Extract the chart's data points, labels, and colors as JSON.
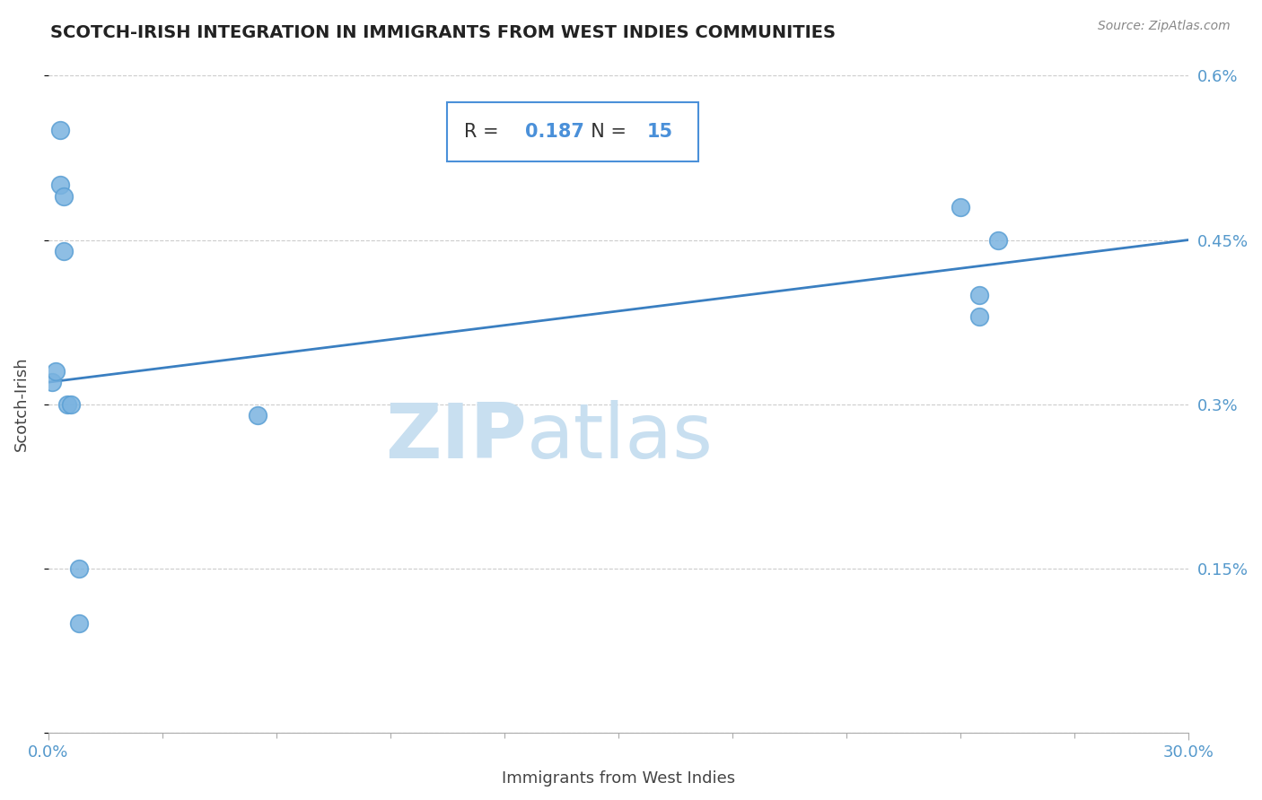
{
  "title": "SCOTCH-IRISH INTEGRATION IN IMMIGRANTS FROM WEST INDIES COMMUNITIES",
  "source": "Source: ZipAtlas.com",
  "xlabel": "Immigrants from West Indies",
  "ylabel": "Scotch-Irish",
  "R": 0.187,
  "N": 15,
  "x_data": [
    0.001,
    0.002,
    0.003,
    0.003,
    0.004,
    0.004,
    0.005,
    0.006,
    0.008,
    0.008,
    0.055,
    0.24,
    0.245,
    0.245,
    0.25
  ],
  "y_data": [
    0.0032,
    0.0033,
    0.0055,
    0.005,
    0.0049,
    0.0044,
    0.003,
    0.003,
    0.0015,
    0.001,
    0.0029,
    0.0048,
    0.0038,
    0.004,
    0.0045
  ],
  "xlim": [
    0.0,
    0.3
  ],
  "ylim": [
    0.0,
    0.006
  ],
  "x_ticks_major": [
    0.0,
    0.3
  ],
  "x_ticks_minor": [
    0.0,
    0.03,
    0.06,
    0.09,
    0.12,
    0.15,
    0.18,
    0.21,
    0.24,
    0.27,
    0.3
  ],
  "y_ticks": [
    0.0,
    0.0015,
    0.003,
    0.0045,
    0.006
  ],
  "y_tick_labels_right": [
    "",
    "0.15%",
    "0.3%",
    "0.45%",
    "0.6%"
  ],
  "x_tick_labels_major": [
    "0.0%",
    "30.0%"
  ],
  "scatter_color": "#7ab3e0",
  "scatter_edge_color": "#5a9fd4",
  "line_color": "#3a7fc1",
  "watermark_zip": "ZIP",
  "watermark_atlas": "atlas",
  "watermark_color": "#c8dff0",
  "title_color": "#222222",
  "source_color": "#888888",
  "grid_color": "#cccccc",
  "box_color": "#4a90d9",
  "stats_text_color": "#333333",
  "stats_num_color": "#4a90d9",
  "right_label_color": "#5599cc"
}
